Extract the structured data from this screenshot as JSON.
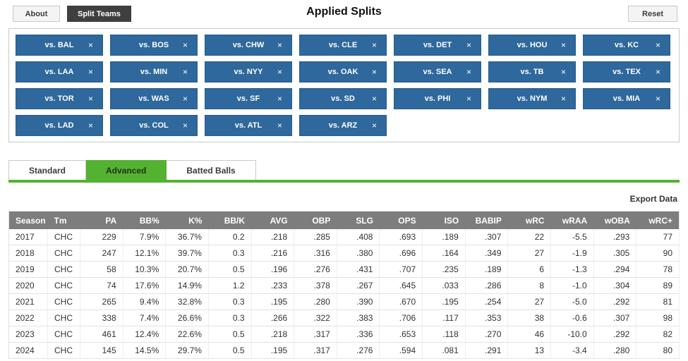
{
  "toolbar": {
    "about_label": "About",
    "split_teams_label": "Split Teams",
    "title": "Applied Splits",
    "reset_label": "Reset"
  },
  "applied_splits": {
    "remove_icon": "×",
    "chips": [
      "vs. BAL",
      "vs. BOS",
      "vs. CHW",
      "vs. CLE",
      "vs. DET",
      "vs. HOU",
      "vs. KC",
      "vs. LAA",
      "vs. MIN",
      "vs. NYY",
      "vs. OAK",
      "vs. SEA",
      "vs. TB",
      "vs. TEX",
      "vs. TOR",
      "vs. WAS",
      "vs. SF",
      "vs. SD",
      "vs. PHI",
      "vs. NYM",
      "vs. MIA",
      "vs. LAD",
      "vs. COL",
      "vs. ATL",
      "vs. ARZ"
    ]
  },
  "tabs": [
    {
      "label": "Standard",
      "active": false
    },
    {
      "label": "Advanced",
      "active": true
    },
    {
      "label": "Batted Balls",
      "active": false
    }
  ],
  "export_label": "Export Data",
  "table": {
    "columns": [
      "Season",
      "Tm",
      "PA",
      "BB%",
      "K%",
      "BB/K",
      "AVG",
      "OBP",
      "SLG",
      "OPS",
      "ISO",
      "BABIP",
      "wRC",
      "wRAA",
      "wOBA",
      "wRC+"
    ],
    "rows": [
      [
        "2017",
        "CHC",
        "229",
        "7.9%",
        "36.7%",
        "0.2",
        ".218",
        ".285",
        ".408",
        ".693",
        ".189",
        ".307",
        "22",
        "-5.5",
        ".293",
        "77"
      ],
      [
        "2018",
        "CHC",
        "247",
        "12.1%",
        "39.7%",
        "0.3",
        ".216",
        ".316",
        ".380",
        ".696",
        ".164",
        ".349",
        "27",
        "-1.9",
        ".305",
        "90"
      ],
      [
        "2019",
        "CHC",
        "58",
        "10.3%",
        "20.7%",
        "0.5",
        ".196",
        ".276",
        ".431",
        ".707",
        ".235",
        ".189",
        "6",
        "-1.3",
        ".294",
        "78"
      ],
      [
        "2020",
        "CHC",
        "74",
        "17.6%",
        "14.9%",
        "1.2",
        ".233",
        ".378",
        ".267",
        ".645",
        ".033",
        ".286",
        "8",
        "-1.0",
        ".304",
        "89"
      ],
      [
        "2021",
        "CHC",
        "265",
        "9.4%",
        "32.8%",
        "0.3",
        ".195",
        ".280",
        ".390",
        ".670",
        ".195",
        ".254",
        "27",
        "-5.0",
        ".292",
        "81"
      ],
      [
        "2022",
        "CHC",
        "338",
        "7.4%",
        "26.6%",
        "0.3",
        ".266",
        ".322",
        ".383",
        ".706",
        ".117",
        ".353",
        "38",
        "-0.6",
        ".307",
        "98"
      ],
      [
        "2023",
        "CHC",
        "461",
        "12.4%",
        "22.6%",
        "0.5",
        ".218",
        ".317",
        ".336",
        ".653",
        ".118",
        ".270",
        "46",
        "-10.0",
        ".292",
        "82"
      ],
      [
        "2024",
        "CHC",
        "145",
        "14.5%",
        "29.7%",
        "0.5",
        ".195",
        ".317",
        ".276",
        ".594",
        ".081",
        ".291",
        "13",
        "-3.4",
        ".280",
        "80"
      ]
    ]
  },
  "colors": {
    "chip_blue": "#2e689c",
    "active_green": "#53b231",
    "table_header_gray": "#7d7d7d"
  }
}
